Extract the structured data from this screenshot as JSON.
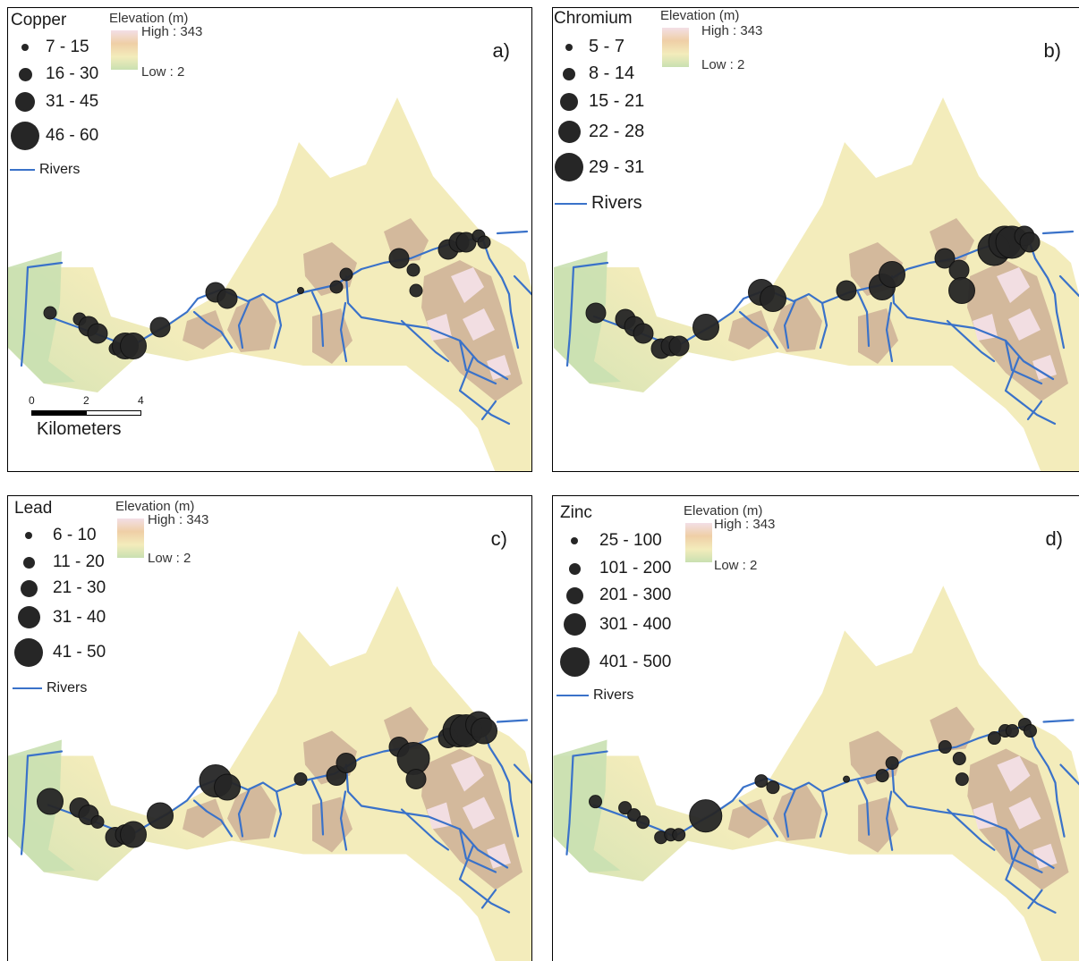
{
  "colors": {
    "river": "#3a72c9",
    "sample": "#262626",
    "elev_high": "#f3dfe6",
    "elev_mid": "#f3ecbb",
    "elev_low": "#c9e0b1",
    "mountain": "#b88f84"
  },
  "elevation_legend": {
    "title": "Elevation (m)",
    "high": "High : 343",
    "low": "Low : 2"
  },
  "rivers_label": "Rivers",
  "scalebar": {
    "ticks": [
      "0",
      "2",
      "4"
    ],
    "unit": "Kilometers"
  },
  "panels": [
    {
      "id": "copper",
      "label": "a)",
      "title": "Copper",
      "legend": [
        "7 - 15",
        "16 - 30",
        "31 - 45",
        "46 - 60"
      ],
      "samples": [
        1,
        1,
        2,
        2,
        1,
        3,
        3,
        2,
        2,
        2,
        0,
        1,
        1,
        2,
        1,
        1,
        2,
        2,
        2,
        1,
        1
      ]
    },
    {
      "id": "chromium",
      "label": "b)",
      "title": "Chromium",
      "legend": [
        "5 - 7",
        "8 - 14",
        "15 - 21",
        "22 - 28",
        "29 - 31"
      ],
      "samples": [
        2,
        2,
        2,
        2,
        2,
        2,
        2,
        3,
        3,
        3,
        2,
        3,
        3,
        2,
        2,
        3,
        4,
        4,
        4,
        2,
        2
      ]
    },
    {
      "id": "lead",
      "label": "c)",
      "title": "Lead",
      "legend": [
        "6 - 10",
        "11 - 20",
        "21 - 30",
        "31 - 40",
        "41 - 50"
      ],
      "samples": [
        3,
        2,
        2,
        1,
        2,
        2,
        3,
        3,
        4,
        3,
        1,
        2,
        2,
        2,
        4,
        2,
        2,
        4,
        4,
        3,
        3
      ]
    },
    {
      "id": "zinc",
      "label": "d)",
      "title": "Zinc",
      "legend": [
        "25 - 100",
        "101 - 200",
        "201 - 300",
        "301 - 400",
        "401 - 500"
      ],
      "samples": [
        1,
        1,
        1,
        1,
        1,
        1,
        1,
        4,
        1,
        1,
        0,
        1,
        1,
        1,
        1,
        1,
        1,
        1,
        1,
        1,
        1
      ]
    }
  ]
}
